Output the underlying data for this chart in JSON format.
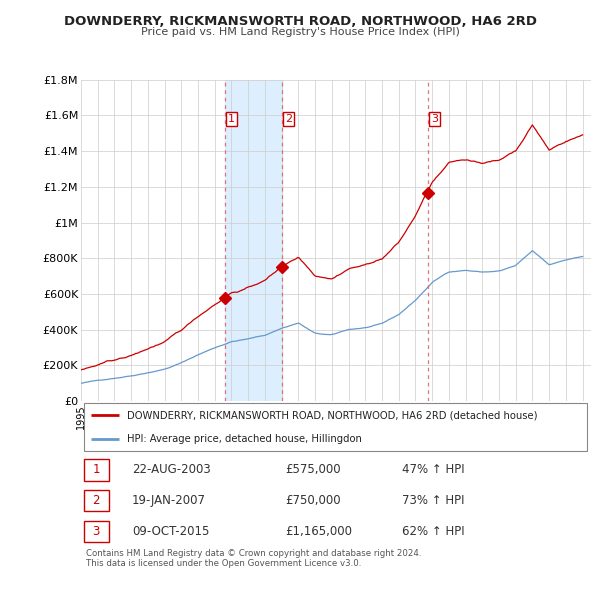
{
  "title": "DOWNDERRY, RICKMANSWORTH ROAD, NORTHWOOD, HA6 2RD",
  "subtitle": "Price paid vs. HM Land Registry's House Price Index (HPI)",
  "ylim": [
    0,
    1800000
  ],
  "yticks": [
    0,
    200000,
    400000,
    600000,
    800000,
    1000000,
    1200000,
    1400000,
    1600000,
    1800000
  ],
  "ytick_labels": [
    "£0",
    "£200K",
    "£400K",
    "£600K",
    "£800K",
    "£1M",
    "£1.2M",
    "£1.4M",
    "£1.6M",
    "£1.8M"
  ],
  "xlim_start": 1995.0,
  "xlim_end": 2025.5,
  "property_color": "#cc0000",
  "hpi_color": "#6699cc",
  "vline_color": "#dd6666",
  "shade_color": "#ddeeff",
  "transactions": [
    {
      "num": 1,
      "date": "22-AUG-2003",
      "date_decimal": 2003.64,
      "price": 575000,
      "hpi_pct": "47%"
    },
    {
      "num": 2,
      "date": "19-JAN-2007",
      "date_decimal": 2007.05,
      "price": 750000,
      "hpi_pct": "73%"
    },
    {
      "num": 3,
      "date": "09-OCT-2015",
      "date_decimal": 2015.77,
      "price": 1165000,
      "hpi_pct": "62%"
    }
  ],
  "legend_property": "DOWNDERRY, RICKMANSWORTH ROAD, NORTHWOOD, HA6 2RD (detached house)",
  "legend_hpi": "HPI: Average price, detached house, Hillingdon",
  "footer": "Contains HM Land Registry data © Crown copyright and database right 2024.\nThis data is licensed under the Open Government Licence v3.0.",
  "background_color": "#ffffff",
  "grid_color": "#cccccc"
}
